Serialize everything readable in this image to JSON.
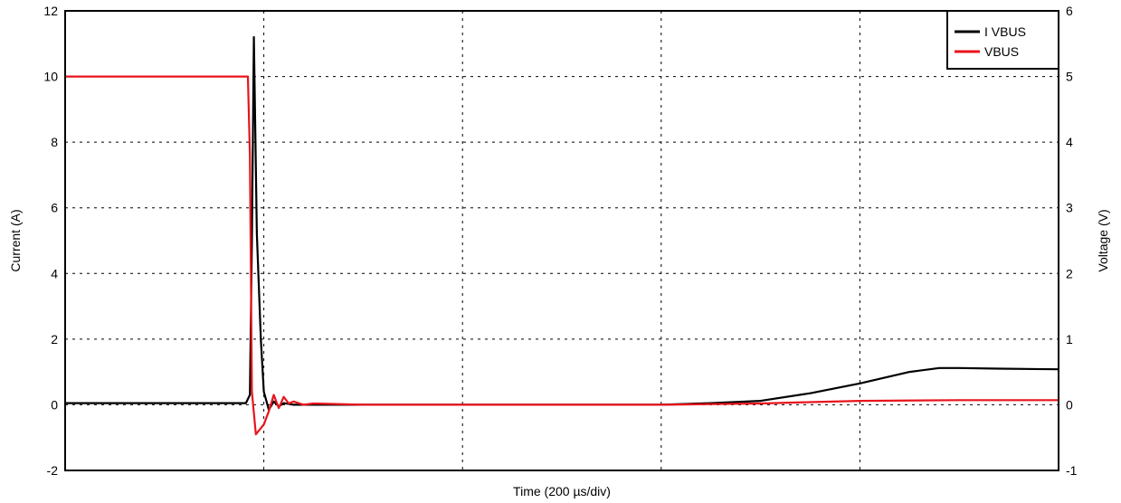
{
  "chart_data": {
    "type": "line",
    "xlabel": "Time (200 µs/div)",
    "ylabel_left": "Current (A)",
    "ylabel_right": "Voltage (V)",
    "xlim": [
      0,
      10
    ],
    "ylim_left": [
      -2,
      12
    ],
    "ylim_right": [
      -1,
      6
    ],
    "yticks_left": [
      "-2",
      "0",
      "2",
      "4",
      "6",
      "8",
      "10",
      "12"
    ],
    "yticks_right": [
      "-1",
      "0",
      "1",
      "2",
      "3",
      "4",
      "5",
      "6"
    ],
    "x_divisions": [
      1,
      2,
      3,
      4
    ],
    "grid": true,
    "legend_position": "top-right",
    "series": [
      {
        "name": "I VBUS",
        "axis": "left",
        "color": "#000000",
        "x": [
          0,
          1.0,
          1.82,
          1.86,
          1.88,
          1.9,
          1.93,
          1.97,
          2.0,
          2.05,
          2.1,
          2.15,
          2.2,
          2.3,
          2.5,
          3.0,
          4.0,
          5.0,
          6.0,
          6.5,
          7.0,
          7.5,
          8.0,
          8.5,
          8.8,
          9.0,
          9.4,
          10.0
        ],
        "y": [
          0.05,
          0.05,
          0.05,
          0.3,
          5.0,
          11.2,
          5.2,
          2.0,
          0.4,
          -0.15,
          0.1,
          -0.05,
          0.05,
          0.0,
          0.0,
          0.0,
          0.0,
          0.0,
          0.0,
          0.05,
          0.12,
          0.35,
          0.65,
          1.0,
          1.12,
          1.12,
          1.1,
          1.08
        ]
      },
      {
        "name": "VBUS",
        "axis": "right",
        "color": "#e8141c",
        "x": [
          0,
          1.0,
          1.84,
          1.86,
          1.88,
          1.92,
          2.0,
          2.05,
          2.1,
          2.15,
          2.2,
          2.25,
          2.3,
          2.4,
          2.5,
          3.0,
          4.0,
          5.0,
          6.0,
          6.5,
          7.0,
          7.5,
          8.0,
          9.0,
          10.0
        ],
        "y": [
          5.0,
          5.0,
          5.0,
          3.8,
          0.2,
          -0.45,
          -0.3,
          -0.1,
          0.15,
          -0.05,
          0.12,
          0.02,
          0.05,
          0.0,
          0.02,
          0.0,
          0.0,
          0.0,
          0.0,
          0.01,
          0.02,
          0.04,
          0.06,
          0.07,
          0.07
        ]
      }
    ]
  }
}
